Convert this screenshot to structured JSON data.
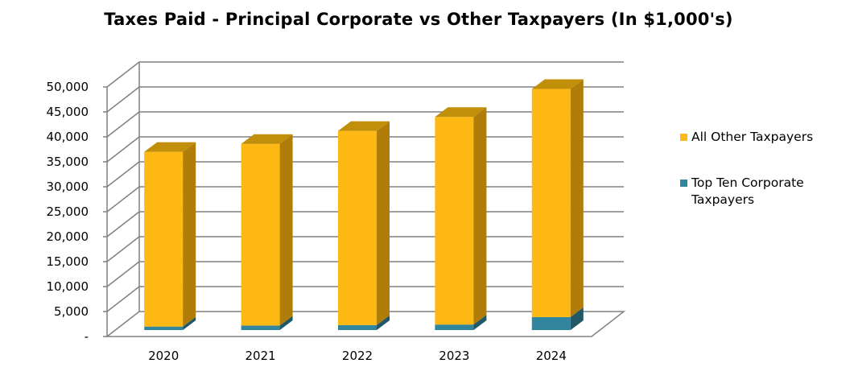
{
  "chart_data": {
    "type": "bar",
    "stacked": true,
    "three_d": true,
    "title": "Taxes Paid - Principal Corporate vs Other Taxpayers (In $1,000's)",
    "categories": [
      "2020",
      "2021",
      "2022",
      "2023",
      "2024"
    ],
    "series": [
      {
        "name": "Top Ten Corporate Taxpayers",
        "values": [
          700,
          900,
          1000,
          1100,
          2600
        ],
        "color": "#31859C",
        "side_color": "#215868",
        "top_color": "#2a7288"
      },
      {
        "name": "All Other Taxpayers",
        "values": [
          35000,
          36400,
          38900,
          41600,
          45700
        ],
        "color": "#FDB813",
        "side_color": "#B07D08",
        "top_color": "#C28F0A"
      }
    ],
    "y_ticks": [
      "-",
      "5,000",
      "10,000",
      "15,000",
      "20,000",
      "25,000",
      "30,000",
      "35,000",
      "40,000",
      "45,000",
      "50,000"
    ],
    "ylim": [
      0,
      50000
    ],
    "xlabel": "",
    "ylabel": "",
    "legend": [
      "All Other Taxpayers",
      "Top Ten Corporate Taxpayers"
    ],
    "legend_position": "right",
    "grid": true
  }
}
